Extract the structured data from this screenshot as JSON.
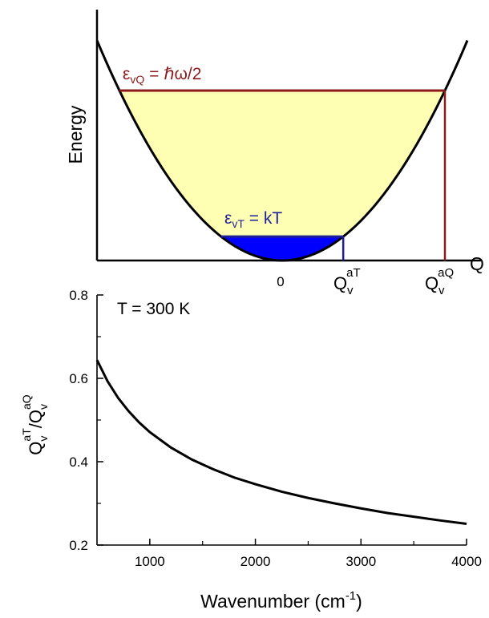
{
  "colors": {
    "axis": "#000000",
    "curve": "#000000",
    "quantum_line": "#8b1a1a",
    "quantum_fill": "#ffffb4",
    "thermal_line": "#1f1f9a",
    "thermal_fill": "#0000ff"
  },
  "chart_data": [
    {
      "type": "diagram",
      "ylabel": "Energy",
      "xlabel": "Q",
      "zero_label": "0",
      "quantum_level": {
        "label_epsilon": "ε",
        "label_sub": "vQ",
        "label_rest": " = ℏω/2",
        "marker_base": "Q",
        "marker_sub": "v",
        "marker_sup": "aQ"
      },
      "thermal_level": {
        "label_epsilon": "ε",
        "label_sub": "vT",
        "label_rest": " = kT",
        "marker_base": "Q",
        "marker_sub": "v",
        "marker_sup": "aT"
      },
      "potential": "parabola",
      "quantum_to_thermal_energy_ratio": 7.1
    },
    {
      "type": "line",
      "annotation": "T = 300 K",
      "xlabel": "Wavenumber (cm",
      "xlabel_sup": "-1",
      "xlabel_end": ")",
      "ylabel": {
        "q1": "Q",
        "q1_sub": "v",
        "q1_sup": "aT",
        "slash": "/",
        "q2": "Q",
        "q2_sub": "v",
        "q2_sup": "aQ"
      },
      "xlim": [
        500,
        4000
      ],
      "ylim": [
        0.2,
        0.8
      ],
      "xticks": [
        1000,
        2000,
        3000,
        4000
      ],
      "xtick_labels": [
        "1000",
        "2000",
        "3000",
        "4000"
      ],
      "yticks": [
        0.2,
        0.4,
        0.6,
        0.8
      ],
      "ytick_labels": [
        "0.2",
        "0.4",
        "0.6",
        "0.8"
      ],
      "series": [
        {
          "x": [
            500,
            600,
            700,
            800,
            900,
            1000,
            1200,
            1400,
            1600,
            1800,
            2000,
            2250,
            2500,
            2750,
            3000,
            3250,
            3500,
            3750,
            4000
          ],
          "y": [
            0.644,
            0.593,
            0.553,
            0.521,
            0.494,
            0.471,
            0.434,
            0.405,
            0.382,
            0.362,
            0.346,
            0.328,
            0.313,
            0.3,
            0.288,
            0.277,
            0.268,
            0.259,
            0.251
          ]
        }
      ]
    }
  ]
}
